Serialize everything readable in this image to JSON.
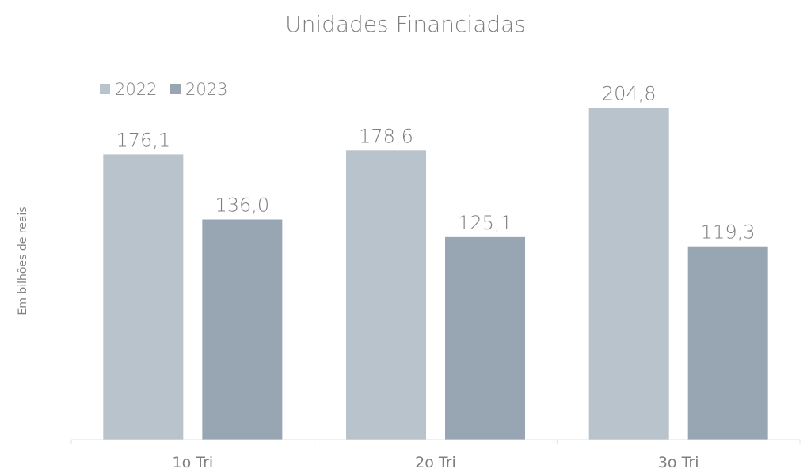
{
  "chart_data": {
    "type": "bar",
    "title": "Unidades Financiadas",
    "ylabel": "Em bilhões de reais",
    "xlabel": "",
    "categories": [
      "1o Tri",
      "2o Tri",
      "3o Tri"
    ],
    "series": [
      {
        "name": "2022",
        "values": [
          176.1,
          178.6,
          204.8
        ],
        "labels": [
          "176,1",
          "178,6",
          "204,8"
        ],
        "color": "#b8c3cb"
      },
      {
        "name": "2023",
        "values": [
          136.0,
          125.1,
          119.3
        ],
        "labels": [
          "136,0",
          "125,1",
          "119,3"
        ],
        "color": "#97a6b2"
      }
    ],
    "ylim": [
      0,
      210
    ],
    "grid": false,
    "legend": "top-left",
    "text_color": "#7f7f7f",
    "axis_color": "#e2e2e2"
  }
}
